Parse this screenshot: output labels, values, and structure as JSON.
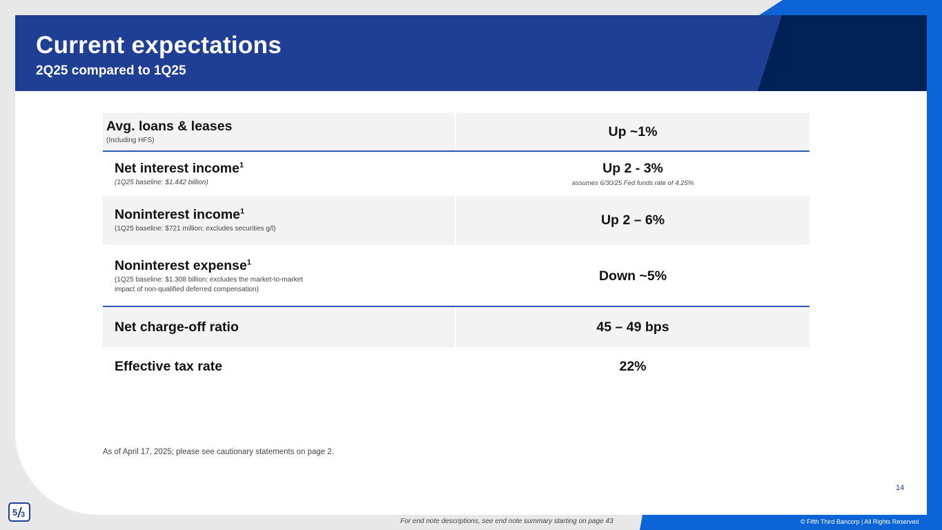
{
  "header": {
    "title": "Current expectations",
    "subtitle": "2Q25 compared to 1Q25"
  },
  "rows": [
    {
      "label": "Avg. loans & leases",
      "footnote_marker": "",
      "note": "(Including HFS)",
      "value": "Up ~1%",
      "value_note": ""
    },
    {
      "label": "Net interest income",
      "footnote_marker": "1",
      "note": "(1Q25 baseline: $1.442 billion)",
      "value": "Up 2 - 3%",
      "value_note": "assumes 6/30/25 Fed funds rate of 4.25%"
    },
    {
      "label": "Noninterest income",
      "footnote_marker": "1",
      "note": "(1Q25 baseline: $721 million; excludes securities g/l)",
      "value": "Up 2 – 6%",
      "value_note": ""
    },
    {
      "label": "Noninterest expense",
      "footnote_marker": "1",
      "note": "(1Q25 baseline: $1.308 billion; excludes the market-to-market\n impact of non-qualified deferred compensation)",
      "value": "Down ~5%",
      "value_note": ""
    },
    {
      "label": "Net charge-off ratio",
      "footnote_marker": "",
      "note": "",
      "value": "45 – 49 bps",
      "value_note": ""
    },
    {
      "label": "Effective tax rate",
      "footnote_marker": "",
      "note": "",
      "value": "22%",
      "value_note": ""
    }
  ],
  "disclaimer": "As of April 17, 2025; please see cautionary statements on page 2.",
  "page_number": "14",
  "footer": {
    "end_note": "For end note descriptions, see end note summary starting on page 43",
    "copyright": "© Fifth Third Bancorp | All Rights Reserved"
  },
  "logo": {
    "icon": "fifth-third-logo-icon",
    "color": "#1f3f94"
  },
  "colors": {
    "header_blue": "#1f3f94",
    "header_dark": "#002056",
    "accent_blue": "#0d64d6",
    "row_shade": "#f3f3f3",
    "separator": "#2d57b8"
  }
}
